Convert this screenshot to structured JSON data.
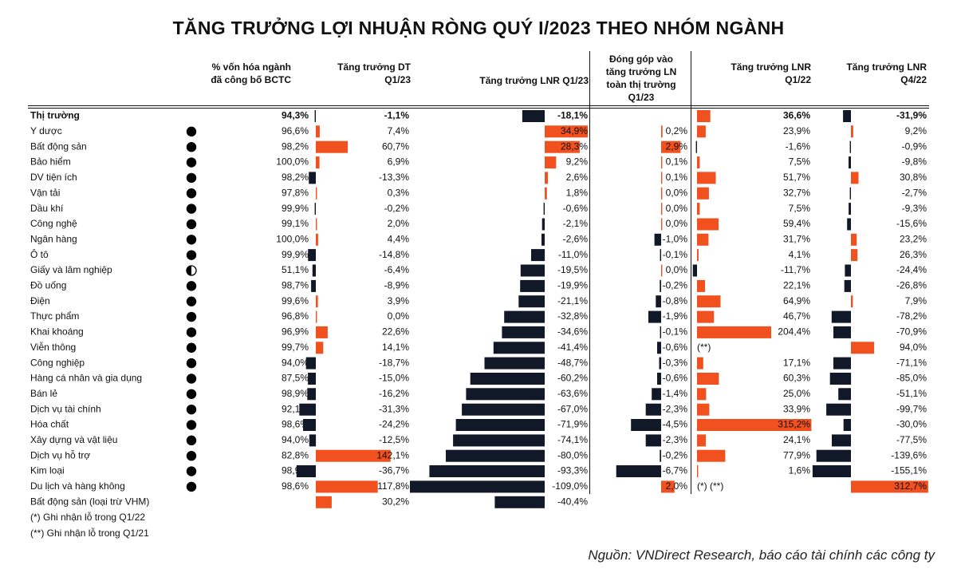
{
  "title": "TĂNG TRƯỞNG LỢI NHUẬN RÒNG QUÝ I/2023 THEO NHÓM NGÀNH",
  "colors": {
    "positive": "#f1501f",
    "negative": "#111827",
    "text": "#111111"
  },
  "headers": {
    "cap": "% vốn hóa ngành\nđã công bố BCTC",
    "rev": "Tăng trưởng DT\nQ1/23",
    "lnr": "Tăng trưởng LNR Q1/23",
    "contrib": "Đóng góp vào\ntăng trưởng LN\ntoàn thị trường\nQ1/23",
    "lnr_q122": "Tăng trưởng LNR\nQ1/22",
    "lnr_q422": "Tăng trưởng LNR\nQ4/22"
  },
  "chart_data": {
    "type": "table",
    "columns": [
      "% vốn hóa ngành đã công bố BCTC",
      "Tăng trưởng DT Q1/23",
      "Tăng trưởng LNR Q1/23",
      "Đóng góp vào tăng trưởng LN toàn thị trường Q1/23",
      "Tăng trưởng LNR Q1/22",
      "Tăng trưởng LNR Q4/22"
    ],
    "rows": [
      {
        "name": "Thị trường",
        "bold": true,
        "pie": null,
        "cap": "94,3%",
        "rev": -1.1,
        "rev_label": "-1,1%",
        "lnr": -18.1,
        "lnr_label": "-18,1%",
        "contrib": null,
        "contrib_label": "",
        "q122": 36.6,
        "q122_label": "36,6%",
        "q422": -31.9,
        "q422_label": "-31,9%"
      },
      {
        "name": "Y dược",
        "pie": "full",
        "cap": "96,6%",
        "rev": 7.4,
        "rev_label": "7,4%",
        "lnr": 34.9,
        "lnr_label": "34,9%",
        "contrib": 0.2,
        "contrib_label": "0,2%",
        "q122": 23.9,
        "q122_label": "23,9%",
        "q422": 9.2,
        "q422_label": "9,2%"
      },
      {
        "name": "Bất động sản",
        "pie": "full",
        "cap": "98,2%",
        "rev": 60.7,
        "rev_label": "60,7%",
        "lnr": 28.3,
        "lnr_label": "28,3%",
        "contrib": 2.9,
        "contrib_label": "2,9%",
        "q122": -1.6,
        "q122_label": "-1,6%",
        "q422": -0.9,
        "q422_label": "-0,9%"
      },
      {
        "name": "Bảo hiểm",
        "pie": "full",
        "cap": "100,0%",
        "rev": 6.9,
        "rev_label": "6,9%",
        "lnr": 9.2,
        "lnr_label": "9,2%",
        "contrib": 0.1,
        "contrib_label": "0,1%",
        "q122": 7.5,
        "q122_label": "7,5%",
        "q422": -9.8,
        "q422_label": "-9,8%"
      },
      {
        "name": "DV tiện ích",
        "pie": "full",
        "cap": "98,2%",
        "rev": -13.3,
        "rev_label": "-13,3%",
        "lnr": 2.6,
        "lnr_label": "2,6%",
        "contrib": 0.1,
        "contrib_label": "0,1%",
        "q122": 51.7,
        "q122_label": "51,7%",
        "q422": 30.8,
        "q422_label": "30,8%"
      },
      {
        "name": "Vận tải",
        "pie": "full",
        "cap": "97,8%",
        "rev": 0.3,
        "rev_label": "0,3%",
        "lnr": 1.8,
        "lnr_label": "1,8%",
        "contrib": 0.0,
        "contrib_label": "0,0%",
        "q122": 32.7,
        "q122_label": "32,7%",
        "q422": -2.7,
        "q422_label": "-2,7%"
      },
      {
        "name": "Dầu khí",
        "pie": "full",
        "cap": "99,9%",
        "rev": -0.2,
        "rev_label": "-0,2%",
        "lnr": -0.6,
        "lnr_label": "-0,6%",
        "contrib": 0.0,
        "contrib_label": "0,0%",
        "q122": 7.5,
        "q122_label": "7,5%",
        "q422": -9.3,
        "q422_label": "-9,3%"
      },
      {
        "name": "Công nghệ",
        "pie": "full",
        "cap": "99,1%",
        "rev": 2.0,
        "rev_label": "2,0%",
        "lnr": -2.1,
        "lnr_label": "-2,1%",
        "contrib": 0.0,
        "contrib_label": "0,0%",
        "q122": 59.4,
        "q122_label": "59,4%",
        "q422": -15.6,
        "q422_label": "-15,6%"
      },
      {
        "name": "Ngân hàng",
        "pie": "full",
        "cap": "100,0%",
        "rev": 4.4,
        "rev_label": "4,4%",
        "lnr": -2.6,
        "lnr_label": "-2,6%",
        "contrib": -1.0,
        "contrib_label": "-1,0%",
        "q122": 31.7,
        "q122_label": "31,7%",
        "q422": 23.2,
        "q422_label": "23,2%"
      },
      {
        "name": "Ô tô",
        "pie": "full",
        "cap": "99,9%",
        "rev": -14.8,
        "rev_label": "-14,8%",
        "lnr": -11.0,
        "lnr_label": "-11,0%",
        "contrib": -0.1,
        "contrib_label": "-0,1%",
        "q122": 4.1,
        "q122_label": "4,1%",
        "q422": 26.3,
        "q422_label": "26,3%"
      },
      {
        "name": "Giấy và lâm nghiệp",
        "pie": "half",
        "cap": "51,1%",
        "rev": -6.4,
        "rev_label": "-6,4%",
        "lnr": -19.5,
        "lnr_label": "-19,5%",
        "contrib": 0.0,
        "contrib_label": "0,0%",
        "q122": -11.7,
        "q122_label": "-11,7%",
        "q422": -24.4,
        "q422_label": "-24,4%"
      },
      {
        "name": "Đồ uống",
        "pie": "full",
        "cap": "98,7%",
        "rev": -8.9,
        "rev_label": "-8,9%",
        "lnr": -19.9,
        "lnr_label": "-19,9%",
        "contrib": -0.2,
        "contrib_label": "-0,2%",
        "q122": 22.1,
        "q122_label": "22,1%",
        "q422": -26.8,
        "q422_label": "-26,8%"
      },
      {
        "name": "Điện",
        "pie": "full",
        "cap": "99,6%",
        "rev": 3.9,
        "rev_label": "3,9%",
        "lnr": -21.1,
        "lnr_label": "-21,1%",
        "contrib": -0.8,
        "contrib_label": "-0,8%",
        "q122": 64.9,
        "q122_label": "64,9%",
        "q422": 7.9,
        "q422_label": "7,9%"
      },
      {
        "name": "Thực phẩm",
        "pie": "full",
        "cap": "96,8%",
        "rev": 0.0,
        "rev_label": "0,0%",
        "lnr": -32.8,
        "lnr_label": "-32,8%",
        "contrib": -1.9,
        "contrib_label": "-1,9%",
        "q122": 46.7,
        "q122_label": "46,7%",
        "q422": -78.2,
        "q422_label": "-78,2%"
      },
      {
        "name": "Khai khoáng",
        "pie": "full",
        "cap": "96,9%",
        "rev": 22.6,
        "rev_label": "22,6%",
        "lnr": -34.6,
        "lnr_label": "-34,6%",
        "contrib": -0.1,
        "contrib_label": "-0,1%",
        "q122": 204.4,
        "q122_label": "204,4%",
        "q422": -70.9,
        "q422_label": "-70,9%"
      },
      {
        "name": "Viễn thông",
        "pie": "full",
        "cap": "99,7%",
        "rev": 14.1,
        "rev_label": "14,1%",
        "lnr": -41.4,
        "lnr_label": "-41,4%",
        "contrib": -0.6,
        "contrib_label": "-0,6%",
        "q122": null,
        "q122_label": "(**)",
        "q422": 94.0,
        "q422_label": "94,0%"
      },
      {
        "name": "Công nghiệp",
        "pie": "full",
        "cap": "94,0%",
        "rev": -18.7,
        "rev_label": "-18,7%",
        "lnr": -48.7,
        "lnr_label": "-48,7%",
        "contrib": -0.3,
        "contrib_label": "-0,3%",
        "q122": 17.1,
        "q122_label": "17,1%",
        "q422": -71.1,
        "q422_label": "-71,1%"
      },
      {
        "name": "Hàng cá nhân và gia dụng",
        "pie": "full",
        "cap": "87,5%",
        "rev": -15.0,
        "rev_label": "-15,0%",
        "lnr": -60.2,
        "lnr_label": "-60,2%",
        "contrib": -0.6,
        "contrib_label": "-0,6%",
        "q122": 60.3,
        "q122_label": "60,3%",
        "q422": -85.0,
        "q422_label": "-85,0%"
      },
      {
        "name": "Bán lẻ",
        "pie": "full",
        "cap": "98,9%",
        "rev": -16.2,
        "rev_label": "-16,2%",
        "lnr": -63.6,
        "lnr_label": "-63,6%",
        "contrib": -1.4,
        "contrib_label": "-1,4%",
        "q122": 25.0,
        "q122_label": "25,0%",
        "q422": -51.1,
        "q422_label": "-51,1%"
      },
      {
        "name": "Dịch vụ tài chính",
        "pie": "full",
        "cap": "92,1%",
        "rev": -31.3,
        "rev_label": "-31,3%",
        "lnr": -67.0,
        "lnr_label": "-67,0%",
        "contrib": -2.3,
        "contrib_label": "-2,3%",
        "q122": 33.9,
        "q122_label": "33,9%",
        "q422": -99.7,
        "q422_label": "-99,7%"
      },
      {
        "name": "Hóa chất",
        "pie": "full",
        "cap": "98,6%",
        "rev": -24.2,
        "rev_label": "-24,2%",
        "lnr": -71.9,
        "lnr_label": "-71,9%",
        "contrib": -4.5,
        "contrib_label": "-4,5%",
        "q122": 315.2,
        "q122_label": "315,2%",
        "q422": -30.0,
        "q422_label": "-30,0%"
      },
      {
        "name": "Xây dựng và vật liệu",
        "pie": "full",
        "cap": "94,0%",
        "rev": -12.5,
        "rev_label": "-12,5%",
        "lnr": -74.1,
        "lnr_label": "-74,1%",
        "contrib": -2.3,
        "contrib_label": "-2,3%",
        "q122": 24.1,
        "q122_label": "24,1%",
        "q422": -77.5,
        "q422_label": "-77,5%"
      },
      {
        "name": "Dịch vụ hỗ trợ",
        "pie": "full",
        "cap": "82,8%",
        "rev": 142.1,
        "rev_label": "142,1%",
        "lnr": -80.0,
        "lnr_label": "-80,0%",
        "contrib": -0.2,
        "contrib_label": "-0,2%",
        "q122": 77.9,
        "q122_label": "77,9%",
        "q422": -139.6,
        "q422_label": "-139,6%"
      },
      {
        "name": "Kim loại",
        "pie": "full",
        "cap": "98,9%",
        "rev": -36.7,
        "rev_label": "-36,7%",
        "lnr": -93.3,
        "lnr_label": "-93,3%",
        "contrib": -6.7,
        "contrib_label": "-6,7%",
        "q122": 1.6,
        "q122_label": "1,6%",
        "q422": -155.1,
        "q422_label": "-155,1%"
      },
      {
        "name": "Du lịch và hàng không",
        "pie": "full",
        "cap": "98,6%",
        "rev": 117.8,
        "rev_label": "117,8%",
        "lnr": -109.0,
        "lnr_label": "-109,0%",
        "contrib": 2.0,
        "contrib_label": "2,0%",
        "q122": null,
        "q122_label": "(*) (**)",
        "q422": 312.7,
        "q422_label": "312,7%"
      },
      {
        "name": "Bất động sản (loại trừ VHM)",
        "pie": null,
        "cap": "",
        "rev": 30.2,
        "rev_label": "30,2%",
        "lnr": -40.4,
        "lnr_label": "-40,4%",
        "contrib": null,
        "contrib_label": "",
        "q122": null,
        "q122_label": "",
        "q422": null,
        "q422_label": ""
      }
    ]
  },
  "notes": [
    "(*) Ghi nhận lỗ trong Q1/22",
    "(**) Ghi nhận lỗ trong Q1/21"
  ],
  "source": "Nguồn: VNDirect Research, báo cáo tài chính các công ty"
}
